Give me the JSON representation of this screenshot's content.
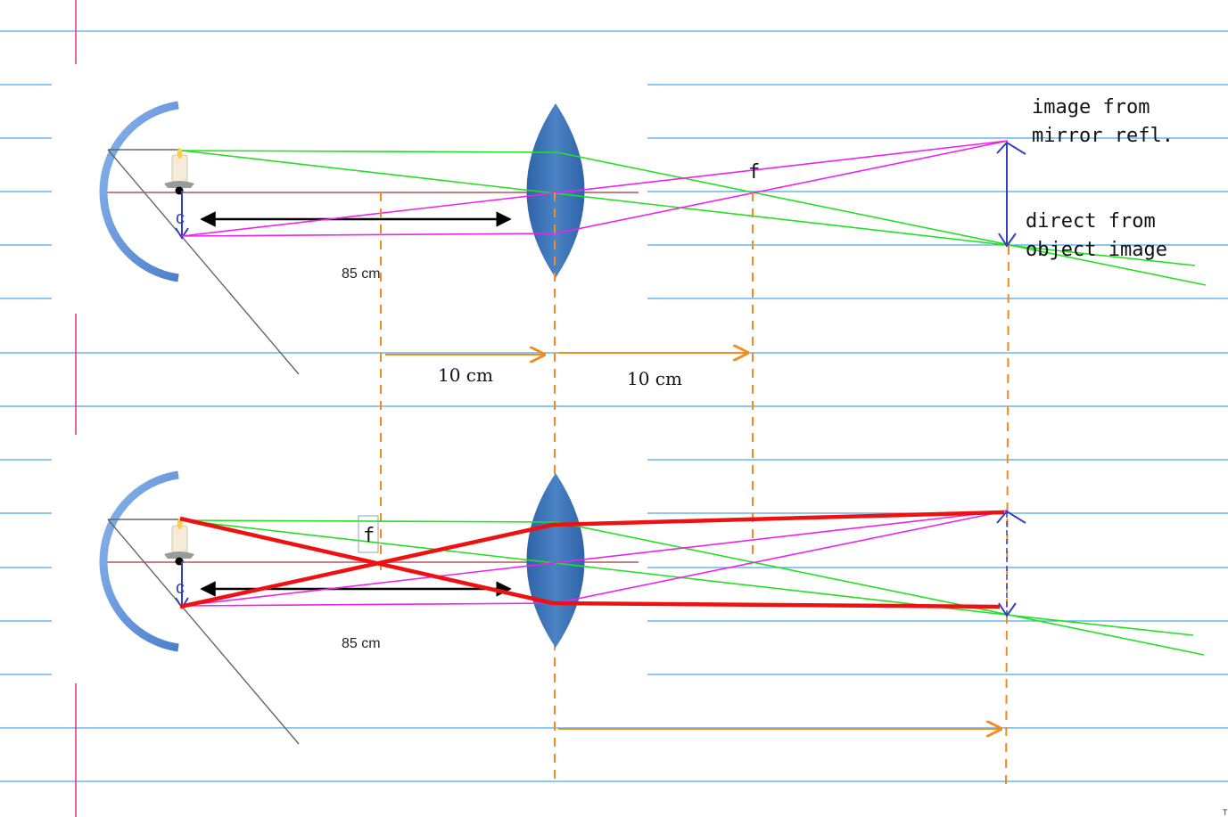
{
  "labels": {
    "top_distance": "85 cm",
    "bottom_distance": "85 cm",
    "center_top": "c",
    "center_bottom": "c",
    "focus_top": "f",
    "focus_bottom": "f",
    "dist_left": "10 cm",
    "dist_right": "10 cm",
    "mirror_image_line1": "image from",
    "mirror_image_line2": "mirror refl.",
    "direct_image_line1": "direct from",
    "direct_image_line2": "object image",
    "corner_mark": "T"
  },
  "colors": {
    "notebook_line": "#4aa8e8",
    "margin_line": "#e0208c",
    "mirror": "#5b8fd6",
    "lens": "#3a73b8",
    "green_ray": "#22e022",
    "magenta_ray": "#ee22ee",
    "red_ray": "#ee1111",
    "orange_guide": "#f58a1f",
    "axis": "#c48080",
    "arrow_blue": "#3040c0"
  }
}
